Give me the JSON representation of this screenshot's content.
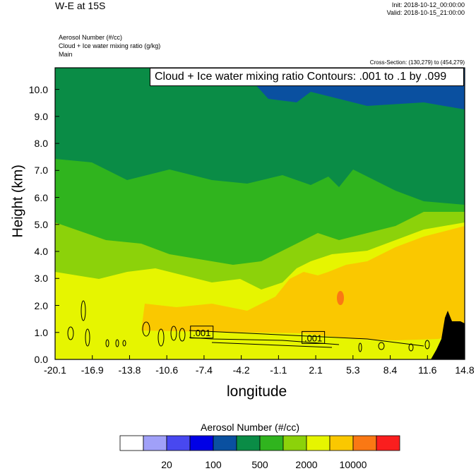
{
  "header": {
    "title": "W-E at 15S",
    "init": "Init: 2018-10-12_00:00:00",
    "valid": "Valid: 2018-10-15_21:00:00",
    "fields": [
      "Aerosol Number   (#/cc)",
      "Cloud + Ice water mixing ratio   (g/kg)",
      "Main"
    ],
    "cross_section": "Cross-Section: (130,279) to (454,279)"
  },
  "colors": {
    "levels": [
      "#ffffff",
      "#a0a0f8",
      "#4848f0",
      "#0000e6",
      "#0a50a0",
      "#0a8c46",
      "#30b41e",
      "#8cd20a",
      "#e6f500",
      "#fac800",
      "#fa7814",
      "#fa1e1e"
    ],
    "terrain": "#000000"
  },
  "chart_data": {
    "type": "heatmap",
    "title": "Cloud + Ice water mixing ratio Contours: .001 to .1 by .099",
    "xlabel": "longitude",
    "ylabel": "Height (km)",
    "x_ticks": [
      "-20.1",
      "-16.9",
      "-13.8",
      "-10.6",
      "-7.4",
      "-4.2",
      "-1.1",
      "2.1",
      "5.3",
      "8.4",
      "11.6",
      "14.8"
    ],
    "y_ticks": [
      "0.0",
      "1.0",
      "2.0",
      "3.0",
      "4.0",
      "5.0",
      "6.0",
      "7.0",
      "8.0",
      "9.0",
      "10.0"
    ],
    "xlim": [
      -20.1,
      14.8
    ],
    "ylim": [
      0,
      10.8
    ],
    "contour_labels": [
      {
        "text": ".001",
        "lon": -7.6,
        "height": 1.0
      },
      {
        "text": ".001",
        "lon": 1.9,
        "height": 0.8
      }
    ],
    "colorbar": {
      "title": "Aerosol Number  (#/cc)",
      "labels": [
        "20",
        "100",
        "500",
        "2000",
        "10000"
      ]
    }
  }
}
